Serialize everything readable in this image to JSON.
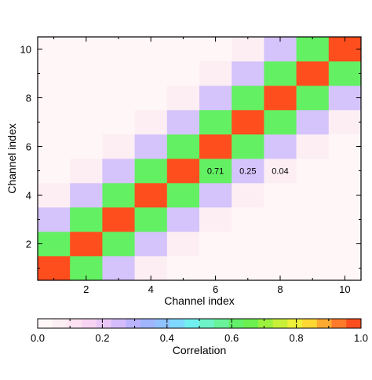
{
  "chart_data": {
    "type": "heatmap",
    "xlabel": "Channel index",
    "ylabel": "Channel index",
    "x": [
      1,
      2,
      3,
      4,
      5,
      6,
      7,
      8,
      9,
      10
    ],
    "y": [
      1,
      2,
      3,
      4,
      5,
      6,
      7,
      8,
      9,
      10
    ],
    "xlim": [
      0.5,
      10.5
    ],
    "ylim": [
      0.5,
      10.5
    ],
    "xticks": [
      "2",
      "4",
      "6",
      "8",
      "10"
    ],
    "yticks": [
      "2",
      "4",
      "6",
      "8",
      "10"
    ],
    "correlation_by_lag": [
      1.0,
      0.71,
      0.25,
      0.04,
      0.0
    ],
    "annotations": [
      "0.71",
      "0.25",
      "0.04"
    ],
    "colorbar": {
      "label": "Correlation",
      "range": [
        0.0,
        1.0
      ],
      "ticks": [
        "0.0",
        "0.2",
        "0.4",
        "0.6",
        "0.8",
        "1.0"
      ],
      "colors": [
        "#fff7f7",
        "#fdeef4",
        "#fde3f2",
        "#f8d4f4",
        "#eac8f8",
        "#d4bcfb",
        "#b9b4ff",
        "#9fb6ff",
        "#8fc2ff",
        "#7fd8ff",
        "#72f0f0",
        "#6ef2c8",
        "#69f29a",
        "#63f06a",
        "#6cf050",
        "#9cf040",
        "#c8f038",
        "#eef03a",
        "#ffd834",
        "#ffaa30",
        "#ff7a2a",
        "#ff4e1e"
      ]
    },
    "cell_colors": {
      "diag": "#ff4e1e",
      "lag1": "#63f063",
      "lag2": "#d5c3fb",
      "lag3": "#fdeef4",
      "rest": "#fff7f7"
    }
  }
}
